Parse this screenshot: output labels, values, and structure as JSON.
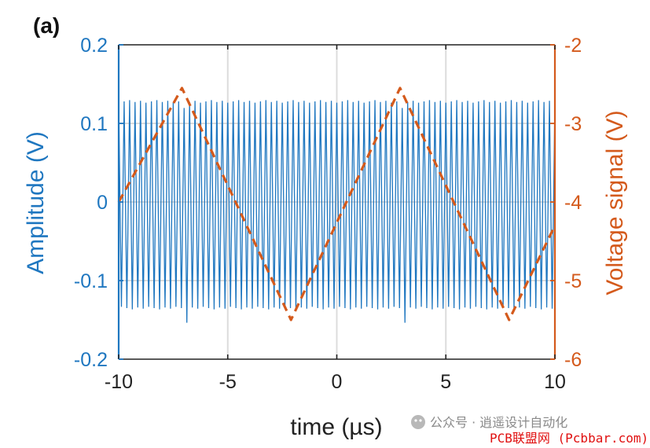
{
  "panel_label": "(a)",
  "watermark": {
    "line1": "公众号 · 逍遥设计自动化",
    "line2": "PCB联盟网 (Pcbbar.com)"
  },
  "chart_data": {
    "type": "line",
    "xlabel": "time (µs)",
    "ylabel_left": "Amplitude (V)",
    "ylabel_right": "Voltage signal (V)",
    "xlim": [
      -10,
      10
    ],
    "ylim_left": [
      -0.2,
      0.2
    ],
    "ylim_right": [
      -6,
      -2
    ],
    "xticks": [
      "-10",
      "-5",
      "0",
      "5",
      "10"
    ],
    "yticks_left": [
      "0.2",
      "0.1",
      "0",
      "-0.1",
      "-0.2"
    ],
    "yticks_right": [
      "-2",
      "-3",
      "-4",
      "-5",
      "-6"
    ],
    "grid": true,
    "colors": {
      "left": "#1f77c0",
      "right": "#d45a1c",
      "axis": "#222222"
    },
    "series": [
      {
        "axis": "left",
        "style": "solid",
        "color": "#1f77c0",
        "cycles_visible": 80,
        "amplitude_upper": 0.128,
        "amplitude_lower": -0.135,
        "glitch_times": [
          -7.0,
          3.0
        ]
      },
      {
        "axis": "right",
        "style": "dashed",
        "color": "#d45a1c",
        "x": [
          -10,
          -7.1,
          -2.1,
          2.9,
          7.9,
          10
        ],
        "values": [
          -4.0,
          -2.55,
          -5.5,
          -2.55,
          -5.5,
          -4.3
        ]
      }
    ]
  }
}
